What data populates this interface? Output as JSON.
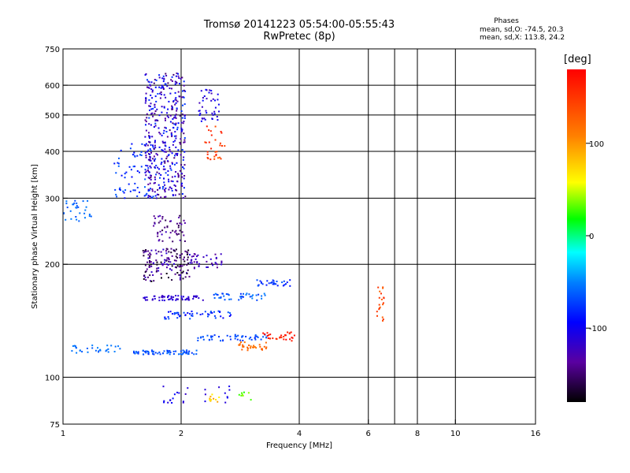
{
  "header": {
    "title_line1": "Tromsø 20141223 05:54:00-05:55:43",
    "title_line2": "RwPretec (8p)",
    "phases_title": "Phases",
    "phases_o": "mean, sd,O: -74.5, 20.3",
    "phases_x": "mean, sd,X: 113.8, 24.2"
  },
  "colorbar": {
    "unit": "[deg]",
    "range": [
      -180,
      180
    ],
    "ticks": [
      100,
      0,
      -100
    ],
    "tick_labels": [
      "100",
      "0",
      "-100"
    ]
  },
  "chart_data": {
    "type": "scatter",
    "title": "Tromsø 20141223 05:54:00-05:55:43",
    "subtitle": "RwPretec (8p)",
    "xlabel": "Frequency [MHz]",
    "ylabel": "Stationary phase Virtual Height [km]",
    "xscale": "log",
    "yscale": "log",
    "xlim": [
      1,
      16
    ],
    "ylim": [
      75,
      750
    ],
    "x_ticks": [
      1,
      2,
      4,
      6,
      8,
      10,
      16
    ],
    "x_tick_labels": [
      "1",
      "2",
      "4",
      "6",
      "8",
      "10",
      "16"
    ],
    "x_grid": [
      2,
      4,
      6,
      7,
      8,
      10
    ],
    "y_ticks": [
      75,
      100,
      200,
      300,
      400,
      500,
      600,
      750
    ],
    "y_tick_labels": [
      "75",
      "100",
      "200",
      "300",
      "400",
      "500",
      "600",
      "750"
    ],
    "y_grid": [
      100,
      200,
      300,
      400,
      500,
      600
    ],
    "color_variable": "phase [deg]",
    "clusters": [
      {
        "x": [
          1.62,
          2.05
        ],
        "y": [
          300,
          650
        ],
        "n": 420,
        "phase": [
          -150,
          -70
        ]
      },
      {
        "x": [
          1.35,
          1.7
        ],
        "y": [
          300,
          420
        ],
        "n": 60,
        "phase": [
          -95,
          -60
        ]
      },
      {
        "x": [
          1.0,
          1.18
        ],
        "y": [
          260,
          300
        ],
        "n": 30,
        "phase": [
          -70,
          -50
        ]
      },
      {
        "x": [
          2.22,
          2.5
        ],
        "y": [
          480,
          590
        ],
        "n": 40,
        "phase": [
          -130,
          -90
        ]
      },
      {
        "x": [
          2.3,
          2.6
        ],
        "y": [
          380,
          470
        ],
        "n": 30,
        "phase": [
          130,
          170
        ]
      },
      {
        "x": [
          1.7,
          2.05
        ],
        "y": [
          230,
          270
        ],
        "n": 50,
        "phase": [
          -160,
          -120
        ]
      },
      {
        "x": [
          1.6,
          2.1
        ],
        "y": [
          180,
          220
        ],
        "n": 140,
        "phase": [
          -180,
          -110
        ]
      },
      {
        "x": [
          2.1,
          2.55
        ],
        "y": [
          195,
          215
        ],
        "n": 40,
        "phase": [
          -140,
          -110
        ]
      },
      {
        "x": [
          1.6,
          2.3
        ],
        "y": [
          160,
          165
        ],
        "n": 60,
        "phase": [
          -125,
          -105
        ]
      },
      {
        "x": [
          2.4,
          3.3
        ],
        "y": [
          160,
          168
        ],
        "n": 40,
        "phase": [
          -80,
          -50
        ]
      },
      {
        "x": [
          3.1,
          3.8
        ],
        "y": [
          175,
          182
        ],
        "n": 30,
        "phase": [
          -90,
          -60
        ]
      },
      {
        "x": [
          1.8,
          2.7
        ],
        "y": [
          143,
          150
        ],
        "n": 50,
        "phase": [
          -100,
          -60
        ]
      },
      {
        "x": [
          1.5,
          2.2
        ],
        "y": [
          115,
          118
        ],
        "n": 70,
        "phase": [
          -80,
          -55
        ]
      },
      {
        "x": [
          2.2,
          3.3
        ],
        "y": [
          125,
          130
        ],
        "n": 50,
        "phase": [
          -80,
          -60
        ]
      },
      {
        "x": [
          1.05,
          1.4
        ],
        "y": [
          116,
          122
        ],
        "n": 30,
        "phase": [
          -65,
          -50
        ]
      },
      {
        "x": [
          2.8,
          3.3
        ],
        "y": [
          118,
          124
        ],
        "n": 30,
        "phase": [
          110,
          130
        ]
      },
      {
        "x": [
          3.2,
          3.9
        ],
        "y": [
          125,
          132
        ],
        "n": 30,
        "phase": [
          150,
          180
        ]
      },
      {
        "x": [
          1.8,
          2.8
        ],
        "y": [
          85,
          95
        ],
        "n": 25,
        "phase": [
          -120,
          -90
        ]
      },
      {
        "x": [
          2.35,
          2.5
        ],
        "y": [
          86,
          90
        ],
        "n": 10,
        "phase": [
          60,
          100
        ]
      },
      {
        "x": [
          2.8,
          3.1
        ],
        "y": [
          87,
          92
        ],
        "n": 8,
        "phase": [
          20,
          40
        ]
      },
      {
        "x": [
          6.3,
          6.6
        ],
        "y": [
          140,
          180
        ],
        "n": 20,
        "phase": [
          120,
          160
        ]
      }
    ]
  }
}
